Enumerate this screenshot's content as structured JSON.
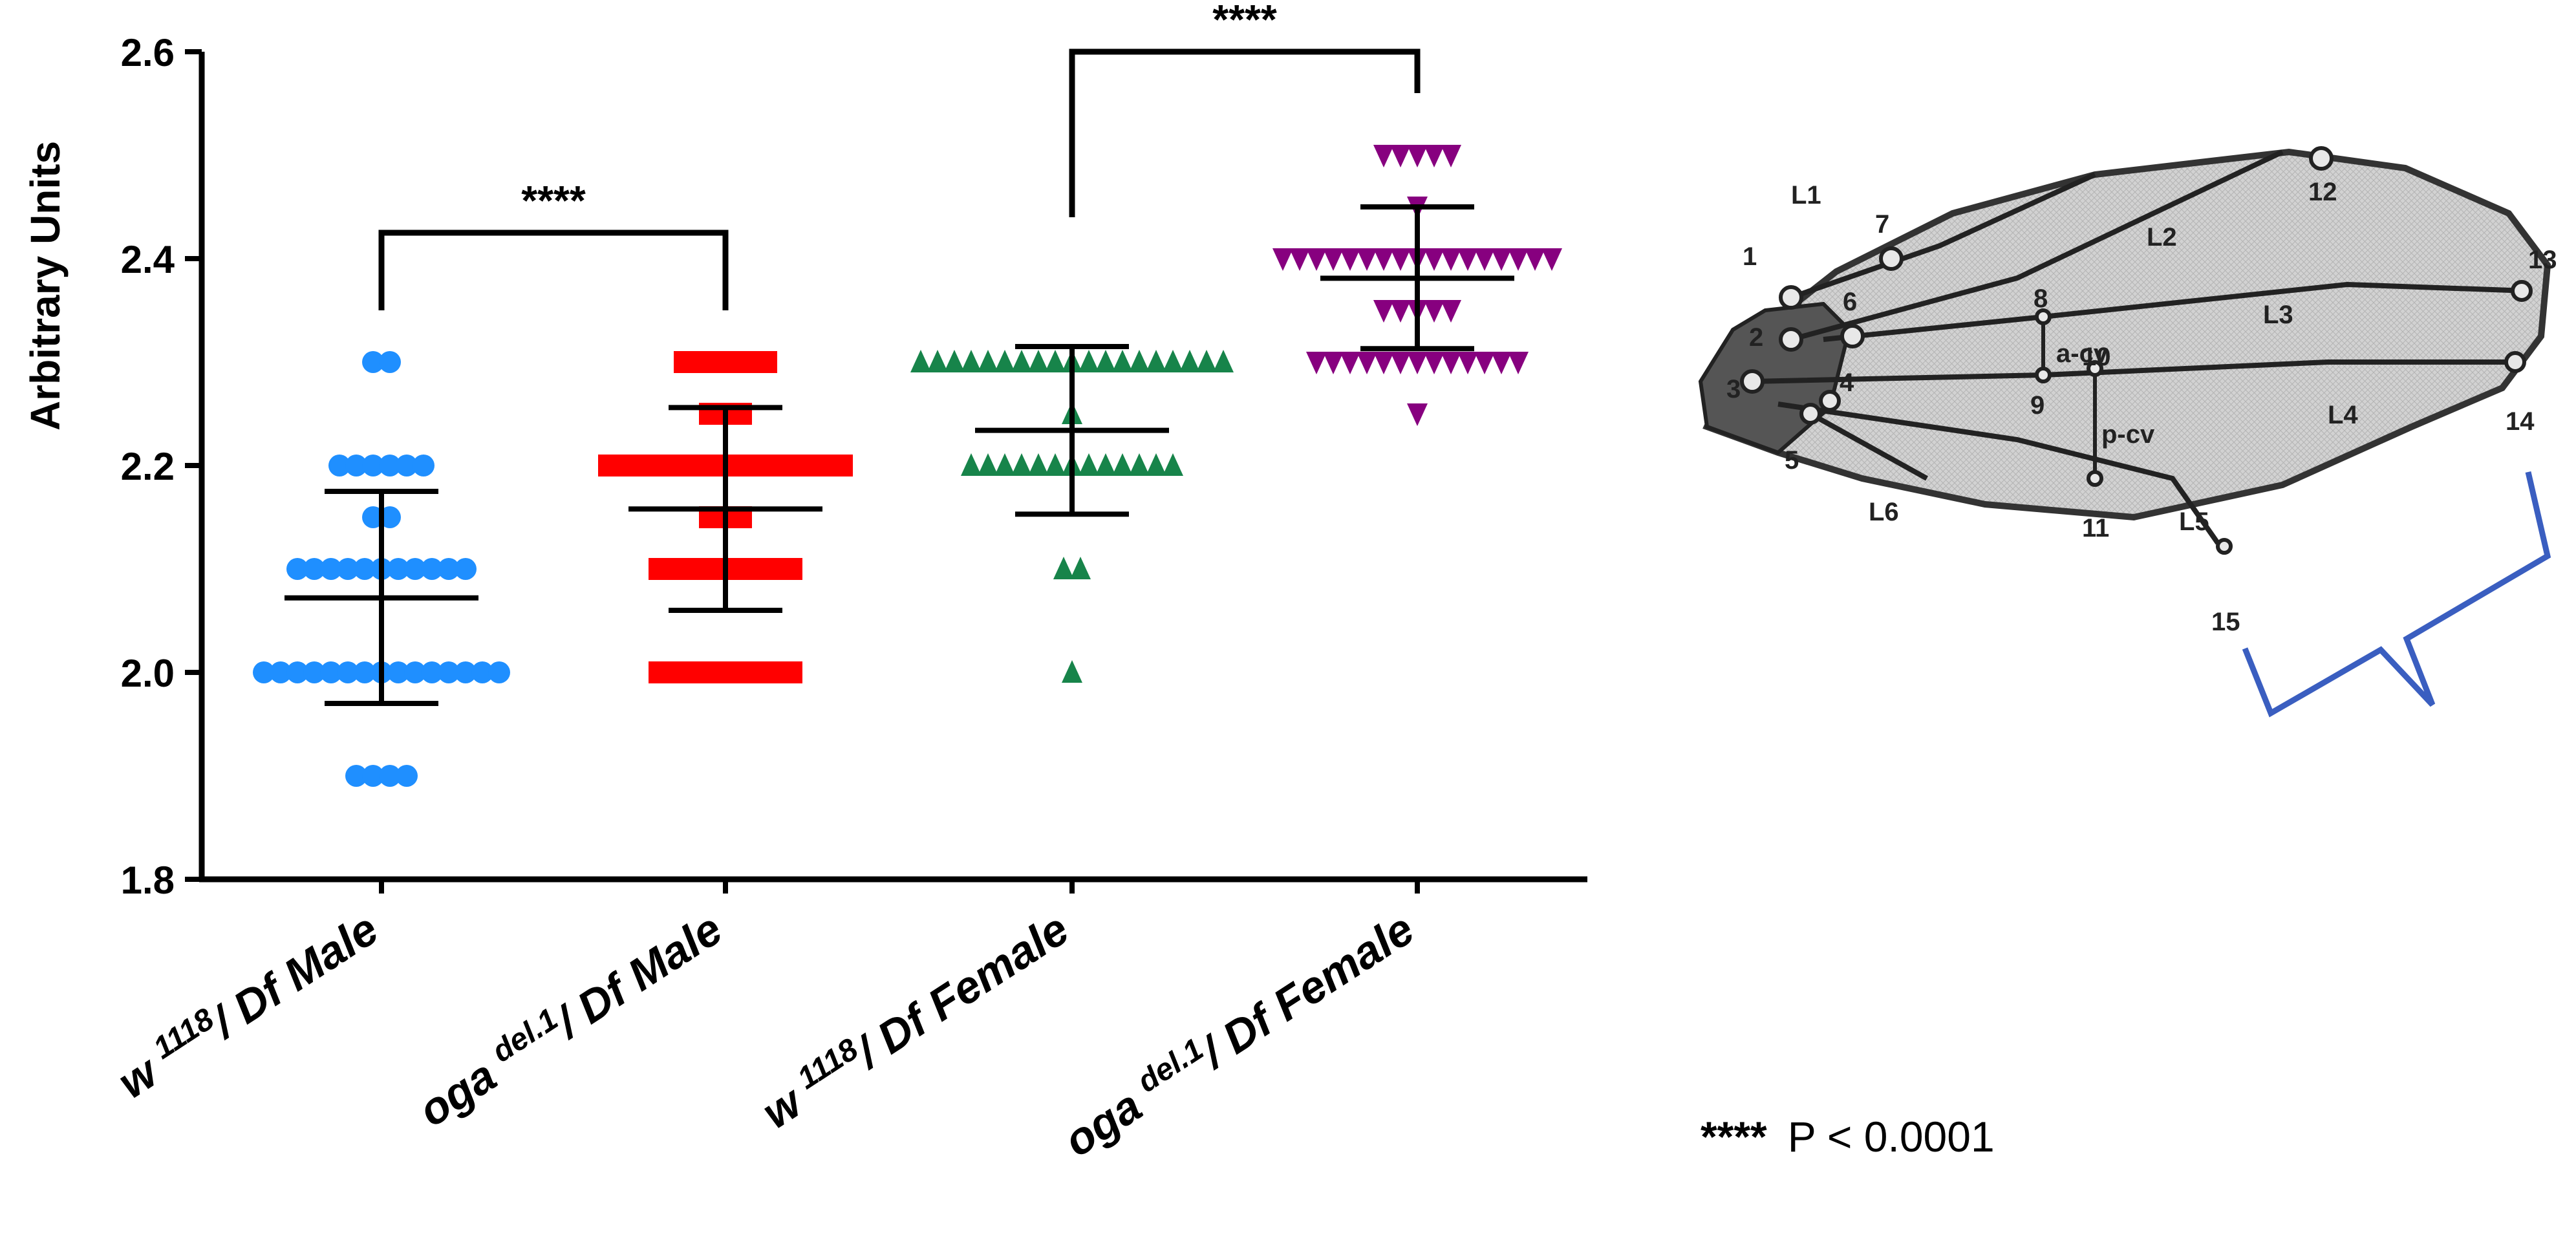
{
  "chart_data": {
    "type": "scatter",
    "ylabel": "Arbitrary Units",
    "ylim": [
      1.8,
      2.6
    ],
    "yticks": [
      "1.8",
      "2.0",
      "2.2",
      "2.4",
      "2.6"
    ],
    "groups": [
      {
        "label_main": "w",
        "label_sup": "1118",
        "label_rest": "/ Df Male",
        "marker": "circle",
        "color": "#1f8fff",
        "mean": 2.072,
        "sd_upper": 2.175,
        "sd_lower": 1.97,
        "points": [
          {
            "y": 2.3,
            "n": 2
          },
          {
            "y": 2.2,
            "n": 6
          },
          {
            "y": 2.15,
            "n": 2
          },
          {
            "y": 2.1,
            "n": 11
          },
          {
            "y": 2.0,
            "n": 15
          },
          {
            "y": 1.9,
            "n": 4
          }
        ]
      },
      {
        "label_main": "oga",
        "label_sup": "del.1",
        "label_rest": "/ Df Male",
        "marker": "square",
        "color": "#ff0000",
        "mean": 2.158,
        "sd_upper": 2.256,
        "sd_lower": 2.06,
        "points": [
          {
            "y": 2.3,
            "n": 6
          },
          {
            "y": 2.25,
            "n": 3
          },
          {
            "y": 2.2,
            "n": 15
          },
          {
            "y": 2.15,
            "n": 3
          },
          {
            "y": 2.1,
            "n": 9
          },
          {
            "y": 2.0,
            "n": 9
          }
        ]
      },
      {
        "label_main": "w",
        "label_sup": "1118",
        "label_rest": "/ Df Female",
        "marker": "triangle-up",
        "color": "#17844a",
        "mean": 2.234,
        "sd_upper": 2.315,
        "sd_lower": 2.153,
        "points": [
          {
            "y": 2.3,
            "n": 19
          },
          {
            "y": 2.25,
            "n": 1
          },
          {
            "y": 2.2,
            "n": 13
          },
          {
            "y": 2.1,
            "n": 2
          },
          {
            "y": 2.0,
            "n": 1
          }
        ]
      },
      {
        "label_main": "oga",
        "label_sup": "del.1",
        "label_rest": "/ Df Female",
        "marker": "triangle-down",
        "color": "#87007f",
        "mean": 2.381,
        "sd_upper": 2.45,
        "sd_lower": 2.313,
        "points": [
          {
            "y": 2.5,
            "n": 5
          },
          {
            "y": 2.45,
            "n": 1
          },
          {
            "y": 2.4,
            "n": 17
          },
          {
            "y": 2.35,
            "n": 5
          },
          {
            "y": 2.3,
            "n": 13
          },
          {
            "y": 2.25,
            "n": 1
          }
        ]
      }
    ],
    "annotations": [
      {
        "from": 0,
        "to": 1,
        "text": "****",
        "y_bar": 2.425,
        "y_left": 2.35,
        "y_right": 2.35
      },
      {
        "from": 2,
        "to": 3,
        "text": "****",
        "y_bar": 2.6,
        "y_left": 2.44,
        "y_right": 2.56
      }
    ],
    "footnote": {
      "stars": "****",
      "text": "P < 0.0001"
    }
  },
  "wing": {
    "labels": [
      "L1",
      "L2",
      "L3",
      "L4",
      "L5",
      "L6",
      "a-cv",
      "p-cv",
      "1",
      "2",
      "3",
      "4",
      "5",
      "6",
      "7",
      "8",
      "9",
      "10",
      "11",
      "12",
      "13",
      "14",
      "15"
    ]
  }
}
